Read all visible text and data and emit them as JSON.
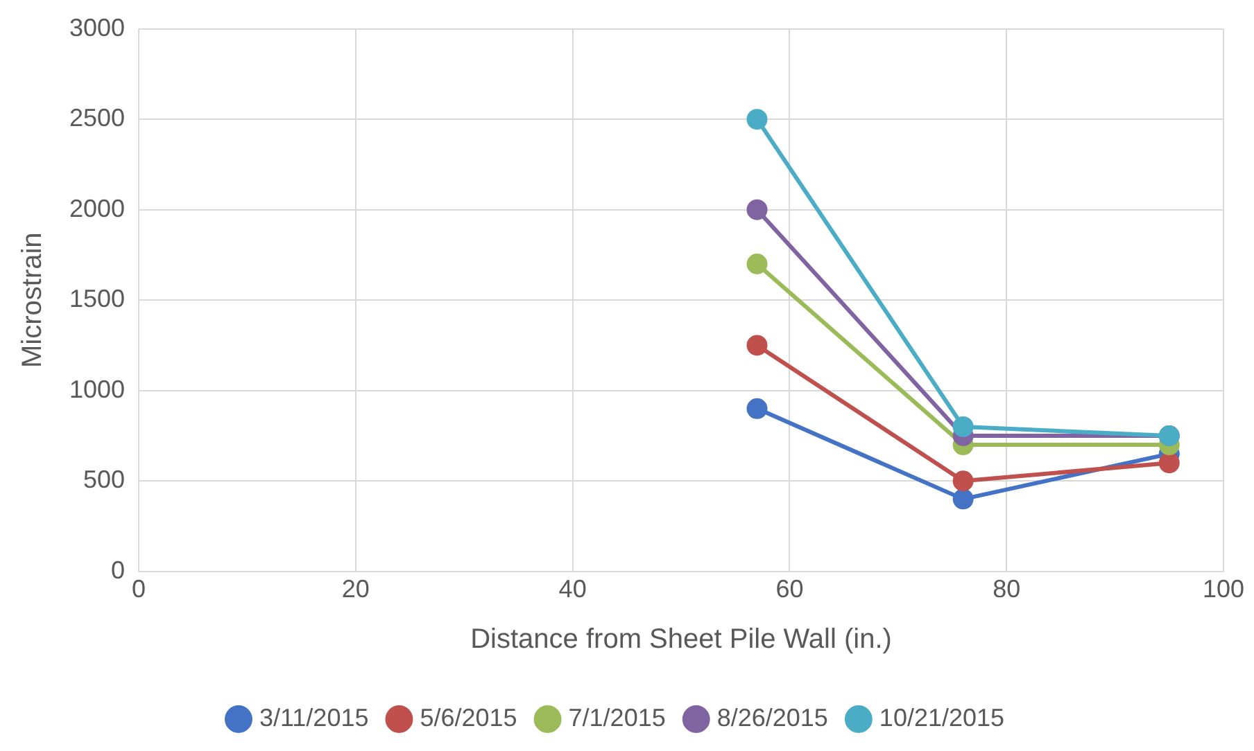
{
  "chart_data": {
    "type": "line",
    "xlabel": "Distance from Sheet Pile Wall (in.)",
    "ylabel": "Microstrain",
    "x": [
      57,
      76,
      95
    ],
    "series": [
      {
        "name": "3/11/2015",
        "color": "#4472c4",
        "values": [
          900,
          400,
          650
        ]
      },
      {
        "name": "5/6/2015",
        "color": "#c0504d",
        "values": [
          1250,
          500,
          600
        ]
      },
      {
        "name": "7/1/2015",
        "color": "#9bbb59",
        "values": [
          1700,
          700,
          700
        ]
      },
      {
        "name": "8/26/2015",
        "color": "#8064a2",
        "values": [
          2000,
          750,
          750
        ]
      },
      {
        "name": "10/21/2015",
        "color": "#4bacc6",
        "values": [
          2500,
          800,
          750
        ]
      }
    ],
    "xlim": [
      0,
      100
    ],
    "xticks": [
      0,
      20,
      40,
      60,
      80,
      100
    ],
    "ylim": [
      0,
      3000
    ],
    "yticks": [
      0,
      500,
      1000,
      1500,
      2000,
      2500,
      3000
    ],
    "grid": true,
    "legend": "bottom",
    "marker": "circle",
    "line_style": "solid"
  }
}
